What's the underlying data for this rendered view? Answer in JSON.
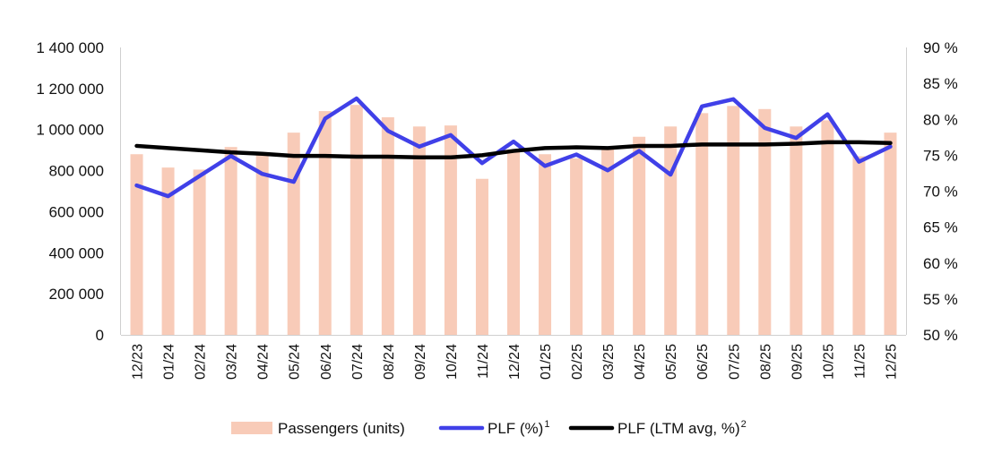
{
  "chart_data": {
    "type": "bar",
    "title": "",
    "categories": [
      "12/23",
      "01/24",
      "02/24",
      "03/24",
      "04/24",
      "05/24",
      "06/24",
      "07/24",
      "08/24",
      "09/24",
      "10/24",
      "11/24",
      "12/24",
      "01/25",
      "02/25",
      "03/25",
      "04/25",
      "05/25",
      "06/25",
      "07/25",
      "08/25",
      "09/25",
      "10/25",
      "11/25",
      "12/25"
    ],
    "series": [
      {
        "name": "Passengers (units)",
        "type": "bar",
        "axis": "left",
        "color": "#f8cbb8",
        "values": [
          880000,
          815000,
          805000,
          915000,
          890000,
          985000,
          1090000,
          1120000,
          1060000,
          1015000,
          1020000,
          760000,
          900000,
          880000,
          860000,
          905000,
          965000,
          1015000,
          1080000,
          1115000,
          1100000,
          1015000,
          1045000,
          870000,
          985000
        ]
      },
      {
        "name": "PLF (%)",
        "superscript": "1",
        "type": "line",
        "axis": "right",
        "color": "#4040e8",
        "values": [
          70.8,
          69.3,
          72.1,
          74.9,
          72.4,
          71.3,
          80.1,
          82.9,
          78.4,
          76.2,
          77.8,
          73.9,
          76.9,
          73.5,
          75.1,
          72.9,
          75.6,
          72.3,
          81.8,
          82.8,
          78.8,
          77.4,
          80.7,
          74.1,
          76.2
        ]
      },
      {
        "name": "PLF (LTM avg, %)",
        "superscript": "2",
        "type": "line",
        "axis": "right",
        "color": "#000000",
        "values": [
          76.3,
          76.0,
          75.7,
          75.4,
          75.2,
          74.9,
          74.9,
          74.8,
          74.8,
          74.7,
          74.7,
          75.0,
          75.6,
          76.0,
          76.1,
          76.0,
          76.3,
          76.3,
          76.5,
          76.5,
          76.5,
          76.6,
          76.8,
          76.8,
          76.7
        ]
      }
    ],
    "y_left": {
      "ylim": [
        0,
        1400000
      ],
      "ticks": [
        0,
        200000,
        400000,
        600000,
        800000,
        1000000,
        1200000,
        1400000
      ],
      "tick_labels": [
        "0",
        "200 000",
        "400 000",
        "600 000",
        "800 000",
        "1 000 000",
        "1 200 000",
        "1 400 000"
      ]
    },
    "y_right": {
      "ylim": [
        50,
        90
      ],
      "ticks": [
        50,
        55,
        60,
        65,
        70,
        75,
        80,
        85,
        90
      ],
      "tick_labels": [
        "50 %",
        "55 %",
        "60 %",
        "65 %",
        "70 %",
        "75 %",
        "80 %",
        "85 %",
        "90 %"
      ]
    },
    "xlabel": "",
    "ylabel": "",
    "grid": false,
    "legend_position": "bottom"
  }
}
